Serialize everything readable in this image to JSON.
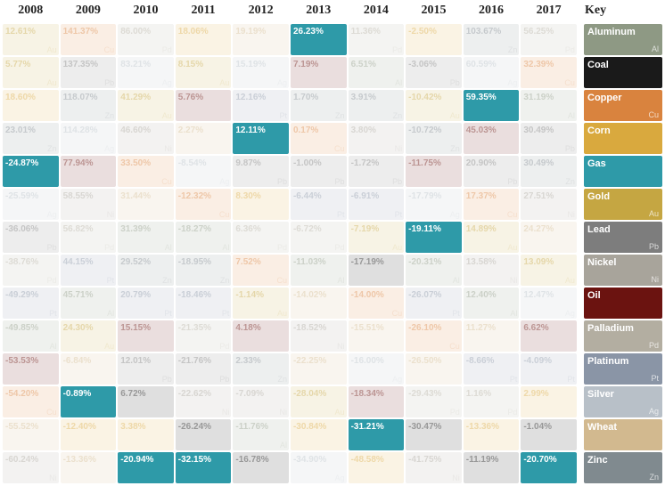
{
  "commodities": {
    "aluminum": {
      "name": "Aluminum",
      "sym": "Al",
      "color": "#8e9984"
    },
    "coal": {
      "name": "Coal",
      "sym": "",
      "color": "#1a1a1a"
    },
    "copper": {
      "name": "Copper",
      "sym": "Cu",
      "color": "#d9833e"
    },
    "corn": {
      "name": "Corn",
      "sym": "",
      "color": "#d9a93e"
    },
    "gas": {
      "name": "Gas",
      "sym": "",
      "color": "#2e9aa8"
    },
    "gold": {
      "name": "Gold",
      "sym": "Au",
      "color": "#c5a642"
    },
    "lead": {
      "name": "Lead",
      "sym": "Pb",
      "color": "#7d7d7d"
    },
    "nickel": {
      "name": "Nickel",
      "sym": "Ni",
      "color": "#a8a49b"
    },
    "oil": {
      "name": "Oil",
      "sym": "",
      "color": "#6b1310"
    },
    "palladium": {
      "name": "Palladium",
      "sym": "Pd",
      "color": "#b3aea1"
    },
    "platinum": {
      "name": "Platinum",
      "sym": "Pt",
      "color": "#8a95a6"
    },
    "silver": {
      "name": "Silver",
      "sym": "Ag",
      "color": "#b8c0c8"
    },
    "wheat": {
      "name": "Wheat",
      "sym": "",
      "color": "#d2b98f"
    },
    "zinc": {
      "name": "Zinc",
      "sym": "Zn",
      "color": "#808a8f"
    }
  },
  "key_order": [
    "aluminum",
    "coal",
    "copper",
    "corn",
    "gas",
    "gold",
    "lead",
    "nickel",
    "oil",
    "palladium",
    "platinum",
    "silver",
    "wheat",
    "zinc"
  ],
  "years": [
    "2008",
    "2009",
    "2010",
    "2011",
    "2012",
    "2013",
    "2014",
    "2015",
    "2016",
    "2017"
  ],
  "active_commodity": "gas",
  "highlight_color": "#2e9aa8",
  "fade_opacity": 0.14,
  "grid": [
    [
      {
        "c": "gold",
        "v": "12.61%"
      },
      {
        "c": "copper",
        "v": "141.37%"
      },
      {
        "c": "palladium",
        "v": "86.00%"
      },
      {
        "c": "corn",
        "v": "18.06%"
      },
      {
        "c": "wheat",
        "v": "19.19%"
      },
      {
        "c": "gas",
        "v": "26.23%"
      },
      {
        "c": "palladium",
        "v": "11.36%"
      },
      {
        "c": "corn",
        "v": "-2.50%"
      },
      {
        "c": "zinc",
        "v": "103.67%"
      },
      {
        "c": "palladium",
        "v": "56.25%"
      }
    ],
    [
      {
        "c": "gold",
        "v": "5.77%"
      },
      {
        "c": "lead",
        "v": "137.35%"
      },
      {
        "c": "silver",
        "v": "83.21%"
      },
      {
        "c": "gold",
        "v": "8.15%"
      },
      {
        "c": "silver",
        "v": "15.19%"
      },
      {
        "c": "oil",
        "v": "7.19%"
      },
      {
        "c": "aluminum",
        "v": "6.51%"
      },
      {
        "c": "lead",
        "v": "-3.06%"
      },
      {
        "c": "silver",
        "v": "60.59%"
      },
      {
        "c": "copper",
        "v": "32.39%"
      }
    ],
    [
      {
        "c": "corn",
        "v": "18.60%"
      },
      {
        "c": "zinc",
        "v": "118.07%"
      },
      {
        "c": "gold",
        "v": "41.29%"
      },
      {
        "c": "oil",
        "v": "5.76%"
      },
      {
        "c": "platinum",
        "v": "12.16%"
      },
      {
        "c": "zinc",
        "v": "1.70%"
      },
      {
        "c": "zinc",
        "v": "3.91%"
      },
      {
        "c": "gold",
        "v": "-10.42%"
      },
      {
        "c": "gas",
        "v": "59.35%"
      },
      {
        "c": "aluminum",
        "v": "31.19%"
      }
    ],
    [
      {
        "c": "zinc",
        "v": "23.01%"
      },
      {
        "c": "silver",
        "v": "114.28%"
      },
      {
        "c": "nickel",
        "v": "46.60%"
      },
      {
        "c": "wheat",
        "v": "2.27%"
      },
      {
        "c": "gas",
        "v": "12.11%"
      },
      {
        "c": "copper",
        "v": "0.17%"
      },
      {
        "c": "nickel",
        "v": "3.80%"
      },
      {
        "c": "zinc",
        "v": "-10.72%"
      },
      {
        "c": "oil",
        "v": "45.03%"
      },
      {
        "c": "lead",
        "v": "30.49%"
      }
    ],
    [
      {
        "c": "gas",
        "v": "-24.87%"
      },
      {
        "c": "oil",
        "v": "77.94%"
      },
      {
        "c": "copper",
        "v": "33.50%"
      },
      {
        "c": "silver",
        "v": "-8.54%"
      },
      {
        "c": "lead",
        "v": "9.87%"
      },
      {
        "c": "lead",
        "v": "-1.00%"
      },
      {
        "c": "lead",
        "v": "-1.72%"
      },
      {
        "c": "oil",
        "v": "-11.75%"
      },
      {
        "c": "lead",
        "v": "20.90%"
      },
      {
        "c": "zinc",
        "v": "30.49%"
      }
    ],
    [
      {
        "c": "silver",
        "v": "-25.59%"
      },
      {
        "c": "nickel",
        "v": "58.55%"
      },
      {
        "c": "wheat",
        "v": "31.44%"
      },
      {
        "c": "copper",
        "v": "-12.32%"
      },
      {
        "c": "corn",
        "v": "8.30%"
      },
      {
        "c": "platinum",
        "v": "-6.44%"
      },
      {
        "c": "platinum",
        "v": "-6.91%"
      },
      {
        "c": "silver",
        "v": "-17.79%"
      },
      {
        "c": "copper",
        "v": "17.37%"
      },
      {
        "c": "nickel",
        "v": "27.51%"
      }
    ],
    [
      {
        "c": "lead",
        "v": "-36.06%"
      },
      {
        "c": "palladium",
        "v": "56.82%"
      },
      {
        "c": "aluminum",
        "v": "31.39%"
      },
      {
        "c": "aluminum",
        "v": "-18.27%"
      },
      {
        "c": "palladium",
        "v": "6.36%"
      },
      {
        "c": "palladium",
        "v": "-6.72%"
      },
      {
        "c": "gold",
        "v": "-7.19%"
      },
      {
        "c": "gas",
        "v": "-19.11%"
      },
      {
        "c": "gold",
        "v": "14.89%"
      },
      {
        "c": "wheat",
        "v": "24.27%"
      }
    ],
    [
      {
        "c": "palladium",
        "v": "-38.76%"
      },
      {
        "c": "platinum",
        "v": "44.15%"
      },
      {
        "c": "zinc",
        "v": "29.52%"
      },
      {
        "c": "zinc",
        "v": "-18.95%"
      },
      {
        "c": "copper",
        "v": "7.52%"
      },
      {
        "c": "aluminum",
        "v": "-11.03%"
      },
      {
        "c": "coal",
        "v": "-17.19%"
      },
      {
        "c": "aluminum",
        "v": "-20.31%"
      },
      {
        "c": "nickel",
        "v": "13.58%"
      },
      {
        "c": "gold",
        "v": "13.09%"
      }
    ],
    [
      {
        "c": "platinum",
        "v": "-49.29%"
      },
      {
        "c": "aluminum",
        "v": "45.71%"
      },
      {
        "c": "platinum",
        "v": "20.79%"
      },
      {
        "c": "platinum",
        "v": "-18.46%"
      },
      {
        "c": "gold",
        "v": "-1.14%"
      },
      {
        "c": "wheat",
        "v": "-14.02%"
      },
      {
        "c": "copper",
        "v": "-14.00%"
      },
      {
        "c": "platinum",
        "v": "-26.07%"
      },
      {
        "c": "aluminum",
        "v": "12.40%"
      },
      {
        "c": "silver",
        "v": "12.47%"
      }
    ],
    [
      {
        "c": "aluminum",
        "v": "-49.85%"
      },
      {
        "c": "gold",
        "v": "24.30%"
      },
      {
        "c": "oil",
        "v": "15.15%"
      },
      {
        "c": "palladium",
        "v": "-21.35%"
      },
      {
        "c": "oil",
        "v": "4.18%"
      },
      {
        "c": "nickel",
        "v": "-18.52%"
      },
      {
        "c": "wheat",
        "v": "-15.51%"
      },
      {
        "c": "copper",
        "v": "-26.10%"
      },
      {
        "c": "wheat",
        "v": "11.27%"
      },
      {
        "c": "oil",
        "v": "6.62%"
      }
    ],
    [
      {
        "c": "oil",
        "v": "-53.53%"
      },
      {
        "c": "wheat",
        "v": "-6.84%"
      },
      {
        "c": "lead",
        "v": "12.01%"
      },
      {
        "c": "lead",
        "v": "-21.76%"
      },
      {
        "c": "zinc",
        "v": "2.33%"
      },
      {
        "c": "wheat",
        "v": "-22.25%"
      },
      {
        "c": "silver",
        "v": "-16.00%"
      },
      {
        "c": "wheat",
        "v": "-26.50%"
      },
      {
        "c": "platinum",
        "v": "-8.66%"
      },
      {
        "c": "platinum",
        "v": "-4.09%"
      }
    ],
    [
      {
        "c": "copper",
        "v": "-54.20%"
      },
      {
        "c": "gas",
        "v": "-0.89%"
      },
      {
        "c": "coal",
        "v": "6.72%"
      },
      {
        "c": "nickel",
        "v": "-22.62%"
      },
      {
        "c": "nickel",
        "v": "-7.09%"
      },
      {
        "c": "gold",
        "v": "-28.04%"
      },
      {
        "c": "oil",
        "v": "-18.34%"
      },
      {
        "c": "palladium",
        "v": "-29.43%"
      },
      {
        "c": "palladium",
        "v": "1.16%"
      },
      {
        "c": "corn",
        "v": "2.99%"
      }
    ],
    [
      {
        "c": "wheat",
        "v": "-55.52%"
      },
      {
        "c": "corn",
        "v": "-12.40%"
      },
      {
        "c": "corn",
        "v": "3.38%"
      },
      {
        "c": "coal",
        "v": "-26.24%"
      },
      {
        "c": "aluminum",
        "v": "-11.76%"
      },
      {
        "c": "corn",
        "v": "-30.84%"
      },
      {
        "c": "gas",
        "v": "-31.21%"
      },
      {
        "c": "coal",
        "v": "-30.47%"
      },
      {
        "c": "corn",
        "v": "-13.36%"
      },
      {
        "c": "coal",
        "v": "-1.04%"
      }
    ],
    [
      {
        "c": "nickel",
        "v": "-60.24%"
      },
      {
        "c": "wheat",
        "v": "-13.36%"
      },
      {
        "c": "gas",
        "v": "-20.94%"
      },
      {
        "c": "gas",
        "v": "-32.15%"
      },
      {
        "c": "coal",
        "v": "-16.78%"
      },
      {
        "c": "silver",
        "v": "-34.90%"
      },
      {
        "c": "corn",
        "v": "-48.58%"
      },
      {
        "c": "nickel",
        "v": "-41.75%"
      },
      {
        "c": "coal",
        "v": "-11.19%"
      },
      {
        "c": "gas",
        "v": "-20.70%"
      }
    ]
  ],
  "ui": {
    "key_label": "Key"
  }
}
